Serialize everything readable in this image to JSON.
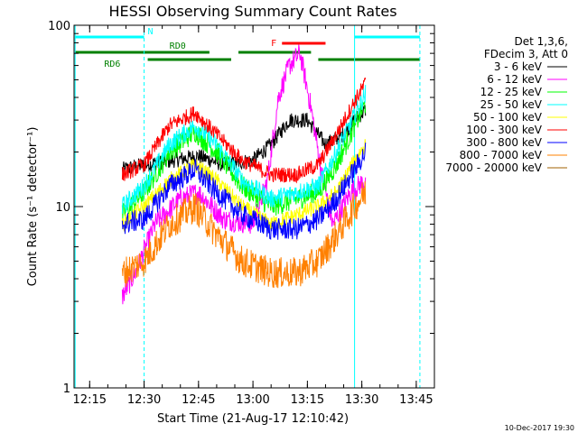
{
  "chart_data": {
    "type": "line",
    "title": "HESSI Observing Summary Count Rates",
    "xlabel": "Start Time (21-Aug-17 12:10:42)",
    "ylabel": "Count Rate (s⁻¹ detector⁻¹)",
    "footer": "10-Dec-2017 19:30",
    "y_scale": "log",
    "ylim": [
      1,
      100
    ],
    "xlim": [
      "12:10:42",
      "13:50:00"
    ],
    "x_ticks": [
      "12:15",
      "12:30",
      "12:45",
      "13:00",
      "13:15",
      "13:30",
      "13:45"
    ],
    "y_ticks": [
      "1",
      "10",
      "100"
    ],
    "legend": {
      "header": [
        "Det 1,3,6,",
        "FDecim 3, Att 0"
      ],
      "position": "right",
      "entries": [
        {
          "label": "3 - 6 keV",
          "color": "#000000"
        },
        {
          "label": "6 - 12 keV",
          "color": "#ff00ff"
        },
        {
          "label": "12 - 25 keV",
          "color": "#00ff00"
        },
        {
          "label": "25 - 50 keV",
          "color": "#00ffff"
        },
        {
          "label": "50 - 100 keV",
          "color": "#ffff00"
        },
        {
          "label": "100 - 300 keV",
          "color": "#ff0000"
        },
        {
          "label": "300 - 800 keV",
          "color": "#0000ff"
        },
        {
          "label": "800 - 7000 keV",
          "color": "#ff8000"
        },
        {
          "label": "7000 - 20000 keV",
          "color": "#a06000"
        }
      ]
    },
    "flag_bars": [
      {
        "label": "N",
        "color": "#00ffff",
        "segments": [
          [
            "12:11",
            "12:30"
          ],
          [
            "13:28",
            "13:46"
          ]
        ]
      },
      {
        "label": "RD0",
        "color": "#008000",
        "segments": [
          [
            "12:11",
            "12:48"
          ],
          [
            "12:56",
            "13:16"
          ]
        ]
      },
      {
        "label": "RD6",
        "color": "#008000",
        "segments": [
          [
            "12:31",
            "12:54"
          ],
          [
            "13:18",
            "13:46"
          ]
        ]
      },
      {
        "label": "F",
        "color": "#ff0000",
        "segments": [
          [
            "13:08",
            "13:20"
          ]
        ]
      }
    ],
    "vertical_lines": [
      {
        "time": "12:11",
        "color": "#00ffff",
        "style": "solid"
      },
      {
        "time": "12:30",
        "color": "#00ffff",
        "style": "dashed"
      },
      {
        "time": "13:28",
        "color": "#00ffff",
        "style": "solid"
      },
      {
        "time": "13:46",
        "color": "#00ffff",
        "style": "dashed"
      }
    ],
    "series": [
      {
        "name": "3 - 6 keV",
        "color": "#000000",
        "noise": 0.1,
        "x": [
          "12:24",
          "12:30",
          "12:38",
          "12:45",
          "12:52",
          "13:00",
          "13:05",
          "13:10",
          "13:15",
          "13:20",
          "13:25",
          "13:28",
          "13:31"
        ],
        "y": [
          16,
          17,
          18,
          19,
          17,
          18,
          22,
          30,
          30,
          22,
          25,
          30,
          34
        ]
      },
      {
        "name": "6 - 12 keV",
        "color": "#ff00ff",
        "noise": 0.14,
        "x": [
          "12:24",
          "12:28",
          "12:33",
          "12:40",
          "12:45",
          "12:52",
          "13:00",
          "13:04",
          "13:07",
          "13:10",
          "13:13",
          "13:16",
          "13:19",
          "13:22",
          "13:27",
          "13:31"
        ],
        "y": [
          3.2,
          4.5,
          8,
          11,
          12,
          8.5,
          8,
          14,
          40,
          60,
          70,
          35,
          15,
          8,
          12,
          14
        ]
      },
      {
        "name": "12 - 25 keV",
        "color": "#00ff00",
        "noise": 0.14,
        "x": [
          "12:24",
          "12:30",
          "12:37",
          "12:44",
          "12:50",
          "12:57",
          "13:05",
          "13:12",
          "13:18",
          "13:23",
          "13:28",
          "13:31"
        ],
        "y": [
          9,
          12,
          20,
          26,
          20,
          13,
          10,
          11,
          12,
          17,
          28,
          37
        ]
      },
      {
        "name": "25 - 50 keV",
        "color": "#00ffff",
        "noise": 0.12,
        "x": [
          "12:24",
          "12:30",
          "12:37",
          "12:44",
          "12:50",
          "12:57",
          "13:05",
          "13:12",
          "13:18",
          "13:23",
          "13:28",
          "13:31"
        ],
        "y": [
          10,
          13,
          22,
          28,
          22,
          14,
          11,
          12,
          13,
          20,
          32,
          42
        ]
      },
      {
        "name": "50 - 100 keV",
        "color": "#ffff00",
        "noise": 0.1,
        "x": [
          "12:24",
          "12:30",
          "12:37",
          "12:44",
          "12:50",
          "12:57",
          "13:05",
          "13:12",
          "13:18",
          "13:23",
          "13:28",
          "13:31"
        ],
        "y": [
          8,
          10,
          14,
          17,
          14,
          10,
          8,
          9,
          10,
          12,
          18,
          22
        ]
      },
      {
        "name": "100 - 300 keV",
        "color": "#ff0000",
        "noise": 0.1,
        "x": [
          "12:24",
          "12:30",
          "12:37",
          "12:44",
          "12:50",
          "12:57",
          "13:05",
          "13:12",
          "13:18",
          "13:23",
          "13:28",
          "13:31"
        ],
        "y": [
          15,
          17,
          28,
          33,
          25,
          18,
          15,
          15,
          17,
          25,
          38,
          48
        ]
      },
      {
        "name": "300 - 800 keV",
        "color": "#0000ff",
        "noise": 0.14,
        "x": [
          "12:24",
          "12:30",
          "12:37",
          "12:44",
          "12:50",
          "12:57",
          "13:05",
          "13:12",
          "13:18",
          "13:23",
          "13:28",
          "13:31"
        ],
        "y": [
          8,
          8.5,
          13,
          16,
          12,
          9,
          7.5,
          7.5,
          8.5,
          11,
          16,
          20
        ]
      },
      {
        "name": "800 - 7000 keV",
        "color": "#ff8000",
        "noise": 0.2,
        "x": [
          "12:24",
          "12:30",
          "12:37",
          "12:44",
          "12:50",
          "12:57",
          "13:05",
          "13:12",
          "13:18",
          "13:23",
          "13:28",
          "13:31"
        ],
        "y": [
          4.3,
          5,
          8,
          10,
          7,
          5,
          4.3,
          4.3,
          5,
          7,
          10,
          12
        ]
      }
    ]
  }
}
